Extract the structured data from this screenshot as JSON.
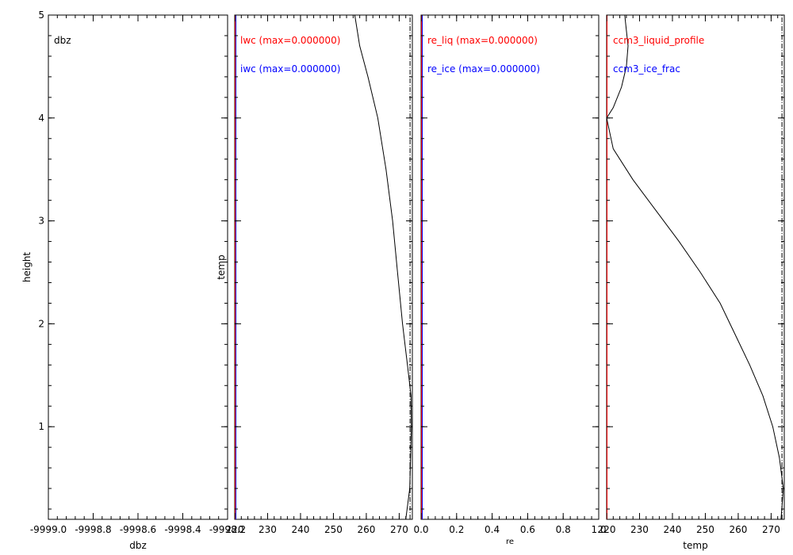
{
  "colors": {
    "red": "#ff0000",
    "blue": "#0000ff",
    "black": "#000000"
  },
  "chart_data": [
    {
      "type": "line",
      "xlabel": "dbz",
      "ylabel": "height",
      "xlim": [
        -9999.0,
        -9998.2
      ],
      "ylim": [
        0.1,
        5.0
      ],
      "xticks": [
        "-9999.0",
        "-9998.8",
        "-9998.6",
        "-9998.4",
        "-9998.2"
      ],
      "yticks": [
        "1",
        "2",
        "3",
        "4",
        "5"
      ],
      "annotations": [
        {
          "text": "dbz",
          "color": "#000000"
        }
      ],
      "series": []
    },
    {
      "type": "line",
      "xlabel": "",
      "ylabel": "temp",
      "xlim": [
        220,
        274
      ],
      "ylim": [
        0.1,
        5.0
      ],
      "xticks": [
        "220",
        "230",
        "240",
        "250",
        "260",
        "270"
      ],
      "annotations": [
        {
          "text": "lwc (max=0.000000)",
          "color": "#ff0000"
        },
        {
          "text": "iwc (max=0.000000)",
          "color": "#0000ff"
        }
      ],
      "series": [
        {
          "style": "solid",
          "color": "#000000",
          "x": [
            256.5,
            258.0,
            260.5,
            263.5,
            266.0,
            268.0,
            269.5,
            271.0,
            272.5,
            273.6,
            273.7,
            273.2,
            272.0
          ],
          "y": [
            5.0,
            4.7,
            4.4,
            4.0,
            3.5,
            3.0,
            2.5,
            2.0,
            1.6,
            1.3,
            1.0,
            0.4,
            0.1
          ]
        },
        {
          "style": "dashdot",
          "color": "#000000",
          "x": [
            273.3,
            273.3
          ],
          "y": [
            0.1,
            5.0
          ]
        }
      ]
    },
    {
      "type": "line",
      "xlabel": "re",
      "ylabel": "",
      "xlim": [
        0.0,
        1.0
      ],
      "ylim": [
        0.1,
        5.0
      ],
      "xticks": [
        "0.0",
        "0.2",
        "0.4",
        "0.6",
        "0.8",
        "1.0"
      ],
      "annotations": [
        {
          "text": "re_liq (max=0.000000)",
          "color": "#ff0000"
        },
        {
          "text": "re_ice (max=0.000000)",
          "color": "#0000ff"
        }
      ],
      "series": []
    },
    {
      "type": "line",
      "xlabel": "temp",
      "ylabel": "",
      "xlim": [
        220,
        274
      ],
      "ylim": [
        0.1,
        5.0
      ],
      "xticks": [
        "220",
        "230",
        "240",
        "250",
        "260",
        "270"
      ],
      "annotations": [
        {
          "text": "ccm3_liquid_profile",
          "color": "#ff0000"
        },
        {
          "text": "ccm3_ice_frac",
          "color": "#0000ff"
        }
      ],
      "series": [
        {
          "style": "solid",
          "color": "#000000",
          "x": [
            225.5,
            226.5,
            226.0,
            224.5,
            222.0,
            220.0,
            222.0,
            228.0,
            235.0,
            242.0,
            248.5,
            254.5,
            259.0,
            263.5,
            267.5,
            270.5,
            272.5,
            273.7,
            273.0
          ],
          "y": [
            5.0,
            4.7,
            4.5,
            4.3,
            4.1,
            4.0,
            3.7,
            3.4,
            3.1,
            2.8,
            2.5,
            2.2,
            1.9,
            1.6,
            1.3,
            1.0,
            0.7,
            0.4,
            0.1
          ]
        },
        {
          "style": "dashdot",
          "color": "#000000",
          "x": [
            273.3,
            273.3
          ],
          "y": [
            0.1,
            5.0
          ]
        }
      ]
    }
  ]
}
